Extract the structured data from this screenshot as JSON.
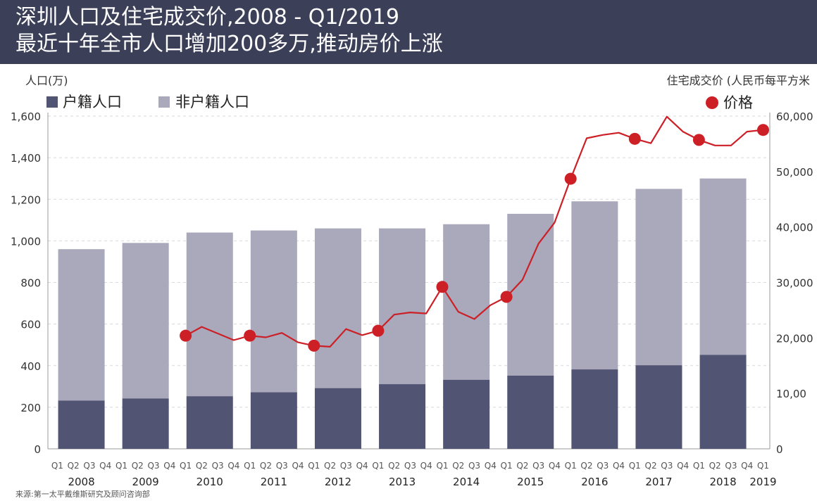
{
  "title": "深圳人口及住宅成交价,2008 - Q1/2019",
  "subtitle": "最近十年全市人口增加200多万,推动房价上涨",
  "source": "来源:第一太平戴维斯研究及顾问咨询部",
  "colors": {
    "header_bg": "#3b3f57",
    "hukou": "#525474",
    "non_hukou": "#a9a9bb",
    "price": "#cc1f26",
    "price_dot": "#cc1f26"
  },
  "chart_data": {
    "type": "bar+line",
    "ylabel_left": "人口(万)",
    "ylabel_right": "住宅成交价 (人民币每平方米",
    "ylim_left": [
      0,
      1600
    ],
    "ylim_right": [
      0,
      60000
    ],
    "left_ticks": [
      "0",
      "200",
      "400",
      "600",
      "800",
      "1,000",
      "1,200",
      "1,400",
      "1,600"
    ],
    "right_ticks": [
      "0",
      "10,00",
      "20,000",
      "30,000",
      "40,000",
      "50,000",
      "60,000"
    ],
    "legend": [
      {
        "key": "hukou",
        "label": "户籍人口"
      },
      {
        "key": "non_hukou",
        "label": "非户籍人口"
      },
      {
        "key": "price",
        "label": "价格"
      }
    ],
    "years": [
      "2008",
      "2009",
      "2010",
      "2011",
      "2012",
      "2013",
      "2014",
      "2015",
      "2016",
      "2017",
      "2018",
      "2019"
    ],
    "quarter_labels": [
      "Q1",
      "Q2",
      "Q3",
      "Q4",
      "Q1",
      "Q2",
      "Q3",
      "Q4",
      "Q1",
      "Q2",
      "Q3",
      "Q4",
      "Q1",
      "Q2",
      "Q3",
      "Q4",
      "Q1",
      "Q2",
      "Q3",
      "Q4",
      "Q1",
      "Q2",
      "Q3",
      "Q4",
      "Q1",
      "Q2",
      "Q3",
      "Q4",
      "Q1",
      "Q2",
      "Q3",
      "Q4",
      "Q1",
      "Q2",
      "Q3",
      "Q4",
      "Q1",
      "Q2",
      "Q3",
      "Q4",
      "Q1",
      "Q2",
      "Q3",
      "Q4",
      "Q1"
    ],
    "bar_series": {
      "categories": [
        "2008",
        "2009",
        "2010",
        "2011",
        "2012",
        "2013",
        "2014",
        "2015",
        "2016",
        "2017",
        "2018"
      ],
      "hukou": [
        232,
        242,
        253,
        272,
        292,
        311,
        332,
        352,
        382,
        402,
        452
      ],
      "total": [
        960,
        990,
        1040,
        1050,
        1060,
        1060,
        1080,
        1130,
        1190,
        1250,
        1300
      ]
    },
    "price_series": {
      "quarters_start": "2010 Q1",
      "values": [
        20400,
        22000,
        20800,
        19600,
        20400,
        20100,
        20900,
        19200,
        18600,
        18400,
        21600,
        20500,
        21300,
        24200,
        24600,
        24400,
        29200,
        24700,
        23400,
        25900,
        27400,
        30500,
        37000,
        40800,
        48700,
        56000,
        56600,
        57000,
        55900,
        55100,
        59900,
        57200,
        55700,
        54700,
        54700,
        57200,
        57500
      ],
      "markers": [
        0,
        4,
        8,
        12,
        16,
        20,
        24,
        28,
        32,
        36
      ]
    }
  }
}
